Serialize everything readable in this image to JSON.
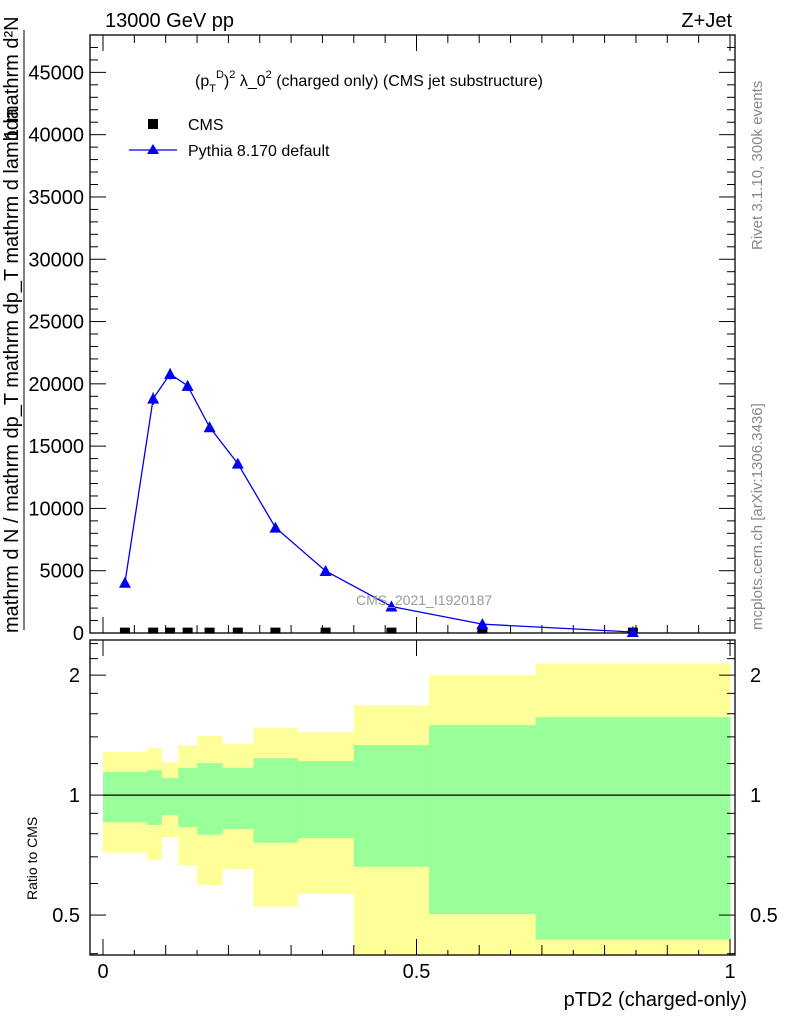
{
  "header": {
    "left": "13000 GeV pp",
    "right": "Z+Jet"
  },
  "side_labels": {
    "rivet": "Rivet 3.1.10,  300k events",
    "mcplots": "mcplots.cern.ch [arXiv:1306.3436]"
  },
  "watermark": "CMS_2021_I1920187",
  "chart_data": [
    {
      "type": "line",
      "title_parts": {
        "pre": "(p",
        "sub": "T",
        "sup": "D",
        "post": ")",
        "sup2": "2",
        "rest": " λ_0",
        "sup3": "2",
        "tail": " (charged only) (CMS jet substructure)"
      },
      "ylabel_parts": {
        "num_top": "mathrm d²N",
        "one": "1",
        "line2": "mathrm d N / mathrm dp_T mathrm dp_T mathrm d lambda",
        "sub": "T"
      },
      "xlim": [
        0,
        1
      ],
      "ylim": [
        0,
        48000
      ],
      "yticks": [
        0,
        5000,
        10000,
        15000,
        20000,
        25000,
        30000,
        35000,
        40000,
        45000
      ],
      "ytick_labels": [
        "0",
        "5000",
        "10000",
        "15000",
        "20000",
        "25000",
        "30000",
        "35000",
        "40000",
        "45000"
      ],
      "legend": {
        "position": "top-left",
        "entries": [
          "CMS",
          "Pythia 8.170 default"
        ]
      },
      "series": [
        {
          "name": "CMS",
          "color": "#000000",
          "marker": "square",
          "x": [
            0.035,
            0.08,
            0.107,
            0.135,
            0.17,
            0.215,
            0.275,
            0.355,
            0.46,
            0.605,
            0.845
          ],
          "y": [
            30,
            30,
            30,
            30,
            30,
            30,
            30,
            30,
            30,
            30,
            30
          ]
        },
        {
          "name": "Pythia 8.170 default",
          "color": "#0000ee",
          "marker": "triangle",
          "x": [
            0.035,
            0.08,
            0.107,
            0.135,
            0.17,
            0.215,
            0.275,
            0.355,
            0.46,
            0.605,
            0.845
          ],
          "y": [
            4030,
            18810,
            20790,
            19840,
            16520,
            13600,
            8460,
            4980,
            2130,
            710,
            80
          ],
          "err": [
            150,
            500,
            450,
            400,
            300,
            250,
            150,
            100,
            60,
            40,
            20
          ]
        }
      ]
    },
    {
      "type": "area",
      "ylabel": "Ratio to CMS",
      "xlabel": "pTD2 (charged-only)",
      "yscale": "log",
      "ylim": [
        0.397,
        2.45
      ],
      "yticks": [
        0.5,
        1,
        2
      ],
      "ytick_labels": [
        "0.5",
        "1",
        "2"
      ],
      "xticks": [
        0,
        0.5,
        1
      ],
      "xtick_labels": [
        "0",
        "0.5",
        "1"
      ],
      "bin_edges": [
        0,
        0.07,
        0.093,
        0.12,
        0.15,
        0.19,
        0.24,
        0.31,
        0.4,
        0.52,
        0.69,
        1.0
      ],
      "green_band": {
        "color": "#99ff99",
        "upper": [
          1.142,
          1.155,
          1.103,
          1.169,
          1.203,
          1.171,
          1.238,
          1.217,
          1.335,
          1.498,
          1.569
        ],
        "lower": [
          0.855,
          0.842,
          0.891,
          0.831,
          0.796,
          0.822,
          0.759,
          0.78,
          0.661,
          0.503,
          0.434
        ]
      },
      "yellow_band": {
        "color": "#ffff99",
        "upper": [
          1.282,
          1.312,
          1.21,
          1.332,
          1.406,
          1.342,
          1.472,
          1.436,
          1.679,
          2.0,
          2.14
        ],
        "lower": [
          0.717,
          0.688,
          0.785,
          0.666,
          0.595,
          0.652,
          0.525,
          0.565,
          0.39,
          0.39,
          0.39
        ]
      }
    }
  ]
}
